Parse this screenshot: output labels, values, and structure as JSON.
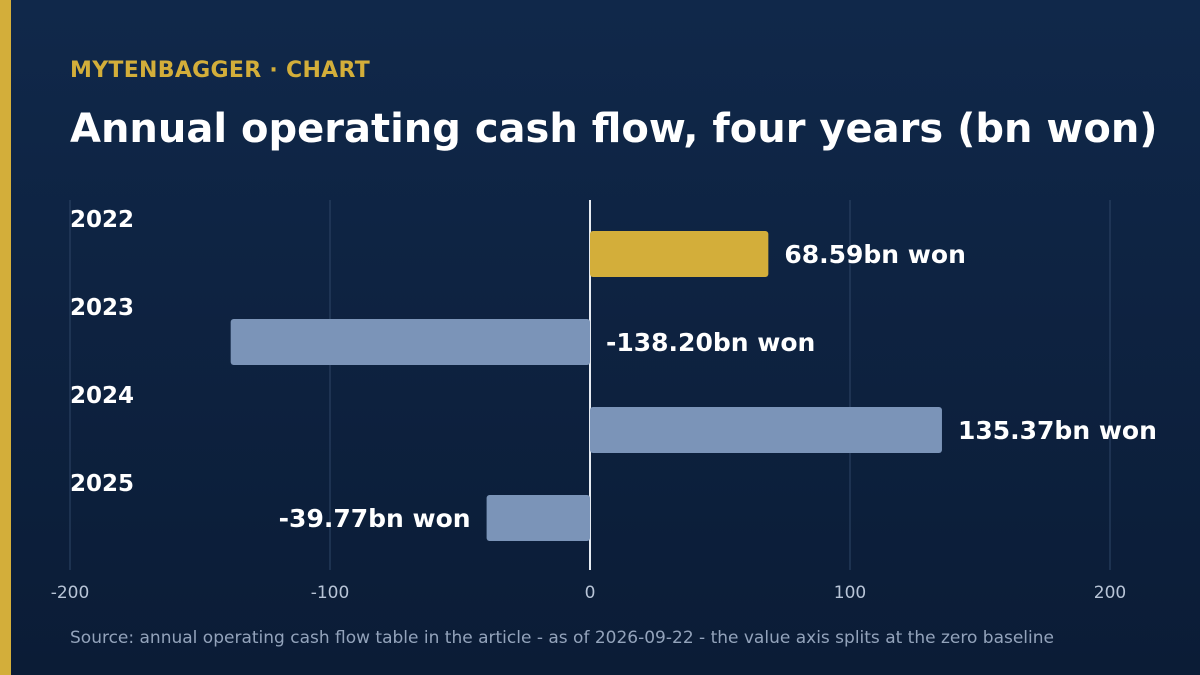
{
  "header": {
    "kicker": "MYTENBAGGER · CHART",
    "title": "Annual operating cash flow, four years (bn won)"
  },
  "footer": {
    "source": "Source: annual operating cash flow table in the article - as of 2026-09-22 - the value axis splits at the zero baseline"
  },
  "chart_data": {
    "type": "bar",
    "orientation": "horizontal",
    "categories": [
      "2022",
      "2023",
      "2024",
      "2025"
    ],
    "values": [
      68.59,
      -138.2,
      135.37,
      -39.77
    ],
    "data_labels": [
      "68.59bn won",
      "-138.20bn won",
      "135.37bn won",
      "-39.77bn won"
    ],
    "xlim": [
      -200,
      200
    ],
    "xticks": [
      -200,
      -100,
      0,
      100,
      200
    ],
    "xtick_labels": [
      "-200",
      "-100",
      "0",
      "100",
      "200"
    ],
    "grid": true,
    "colors": {
      "highlight": "#d3ae3a",
      "bar": "#7b94b8",
      "grid": "#2e4566",
      "baseline": "#e6ebf2",
      "tick_text": "#b8c4d6",
      "label_text": "#ffffff"
    },
    "highlight_index": 0
  }
}
